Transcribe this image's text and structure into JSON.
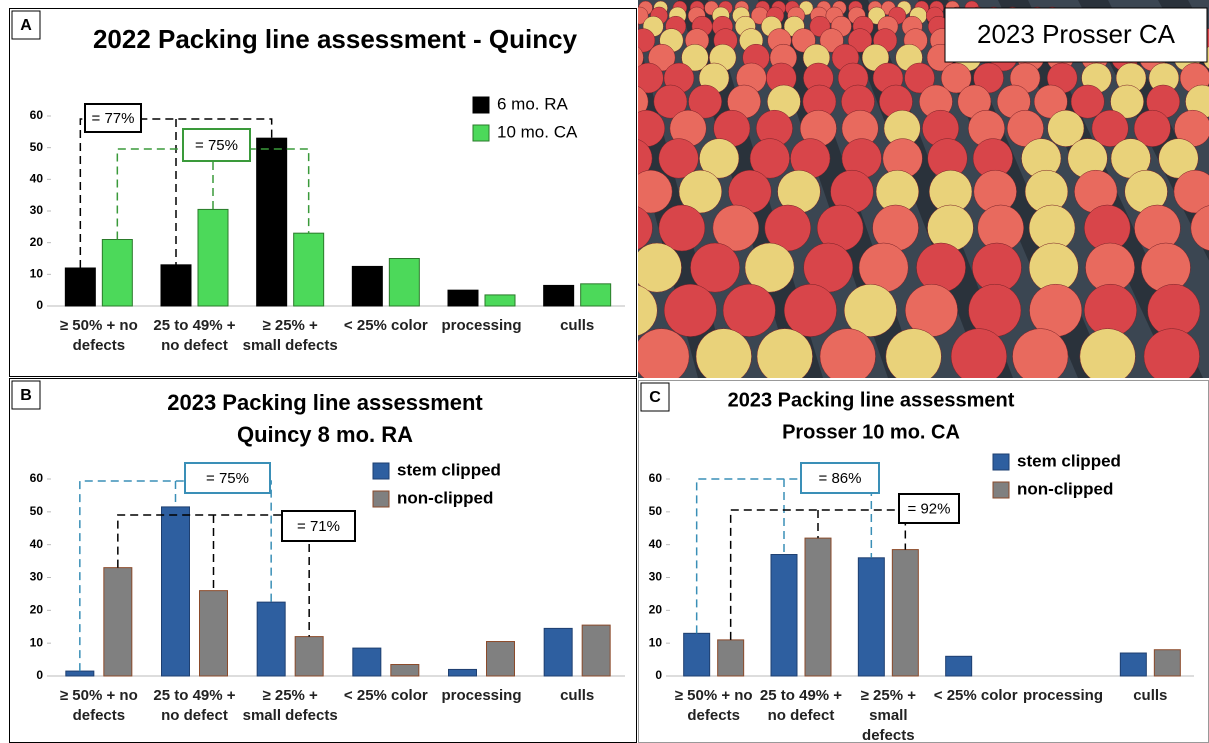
{
  "chart_data": [
    {
      "panel": "A",
      "type": "bar",
      "title": "2022 Packing line assessment - Quincy",
      "categories": [
        "≥ 50% + no defects",
        "25 to 49% + no defect",
        "≥ 25% + small defects",
        "< 25% color",
        "processing",
        "culls"
      ],
      "series": [
        {
          "name": "6 mo. RA",
          "color": "#000000",
          "values": [
            12,
            13,
            53,
            12.5,
            5,
            6.5
          ]
        },
        {
          "name": "10 mo. CA",
          "color": "#4cd95a",
          "values": [
            21,
            30.5,
            23,
            15,
            3.5,
            7
          ]
        }
      ],
      "ylim": [
        0,
        60
      ],
      "yticks": [
        0,
        10,
        20,
        30,
        40,
        50,
        60
      ],
      "annotations": [
        "= 77%",
        "= 75%"
      ]
    },
    {
      "panel": "B",
      "type": "bar",
      "title": "2023 Packing line assessment",
      "subtitle": "Quincy 8 mo. RA",
      "categories": [
        "≥ 50% + no defects",
        "25 to 49% + no defect",
        "≥ 25% + small defects",
        "< 25% color",
        "processing",
        "culls"
      ],
      "series": [
        {
          "name": "stem clipped",
          "color": "#2e5fa0",
          "values": [
            1.5,
            51.5,
            22.5,
            8.5,
            2,
            14.5
          ]
        },
        {
          "name": "non-clipped",
          "color": "#808080",
          "values": [
            33,
            26,
            12,
            3.5,
            10.5,
            15.5
          ]
        }
      ],
      "ylim": [
        0,
        60
      ],
      "yticks": [
        0,
        10,
        20,
        30,
        40,
        50,
        60
      ],
      "annotations": [
        "= 75%",
        "= 71%"
      ]
    },
    {
      "panel": "C",
      "type": "bar",
      "title": "2023 Packing line assessment",
      "subtitle": "Prosser 10 mo. CA",
      "categories": [
        "≥ 50% + no defects",
        "25 to 49% + no defect",
        "≥ 25% + small defects",
        "< 25% color",
        "processing",
        "culls"
      ],
      "series": [
        {
          "name": "stem clipped",
          "color": "#2e5fa0",
          "values": [
            13,
            37,
            36,
            6,
            0,
            7
          ]
        },
        {
          "name": "non-clipped",
          "color": "#808080",
          "values": [
            11,
            42,
            38.5,
            0,
            0,
            8
          ]
        }
      ],
      "ylim": [
        0,
        60
      ],
      "yticks": [
        0,
        10,
        20,
        30,
        40,
        50,
        60
      ],
      "annotations": [
        "= 86%",
        "= 92%"
      ]
    }
  ],
  "photo": {
    "label": "2023 Prosser CA"
  }
}
